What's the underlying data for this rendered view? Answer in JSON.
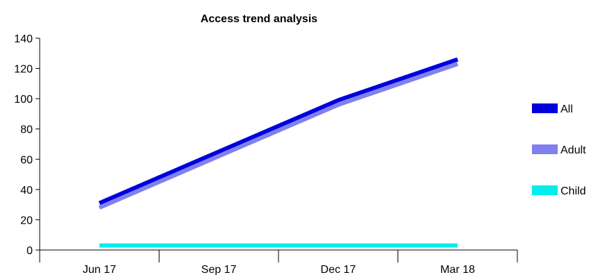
{
  "chart_data": {
    "type": "line",
    "title": "Access trend analysis",
    "xlabel": "",
    "ylabel": "",
    "categories": [
      "Jun 17",
      "Sep 17",
      "Dec 17",
      "Mar 18"
    ],
    "ylim": [
      0,
      140
    ],
    "yticks": [
      0,
      20,
      40,
      60,
      80,
      100,
      120,
      140
    ],
    "grid": false,
    "legend_position": "right",
    "series": [
      {
        "name": "All",
        "color": "#0000dd",
        "values": [
          31,
          65,
          99,
          126
        ]
      },
      {
        "name": "Adult",
        "color": "#8080ee",
        "values": [
          28,
          62,
          96,
          123
        ]
      },
      {
        "name": "Child",
        "color": "#00eeee",
        "values": [
          3,
          3,
          3,
          3
        ]
      }
    ]
  }
}
